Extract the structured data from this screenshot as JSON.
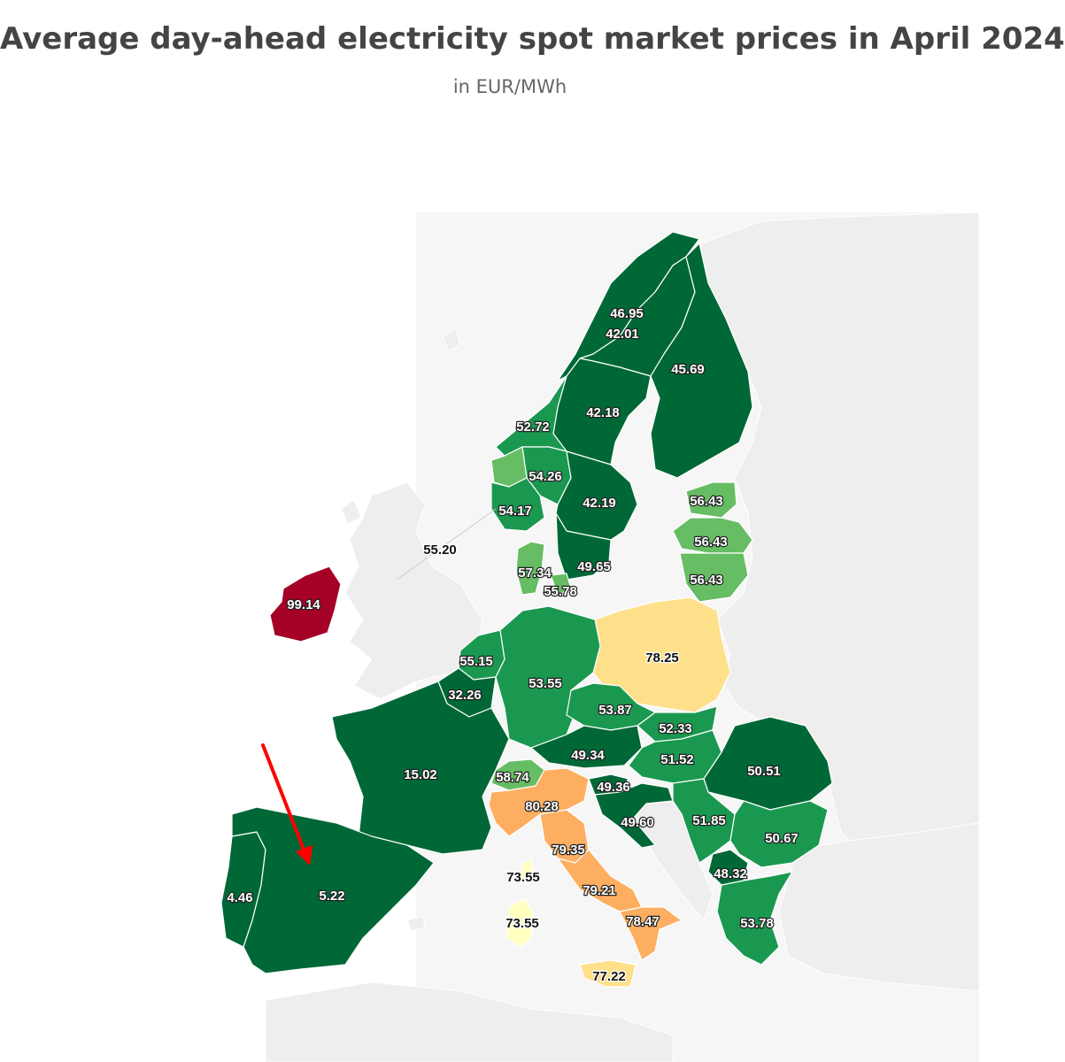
{
  "title": "Average day-ahead electricity spot market prices in April 2024",
  "subtitle": "in EUR/MWh",
  "colors": {
    "very_low": "#006837",
    "low": "#1a9850",
    "mid_low": "#66bd63",
    "mid": "#fee08b",
    "mid_high": "#fdae61",
    "pale": "#ffffbf",
    "high": "#a50026",
    "background_land": "#eeeeee",
    "arrow": "#ff0000"
  },
  "regions": [
    {
      "id": "no4",
      "value": "46.95",
      "color": "very_low"
    },
    {
      "id": "se1",
      "value": "42.01",
      "color": "very_low"
    },
    {
      "id": "fi",
      "value": "45.69",
      "color": "very_low"
    },
    {
      "id": "se2",
      "value": "42.18",
      "color": "very_low"
    },
    {
      "id": "no3",
      "value": "52.72",
      "color": "low"
    },
    {
      "id": "no1",
      "value": "54.26",
      "color": "low"
    },
    {
      "id": "no2",
      "value": "54.17",
      "color": "low"
    },
    {
      "id": "se3",
      "value": "42.19",
      "color": "very_low"
    },
    {
      "id": "se4",
      "value": "49.65",
      "color": "very_low"
    },
    {
      "id": "ee",
      "value": "56.43",
      "color": "mid_low"
    },
    {
      "id": "lv",
      "value": "56.43",
      "color": "mid_low"
    },
    {
      "id": "lt",
      "value": "56.43",
      "color": "mid_low"
    },
    {
      "id": "uk_link",
      "value": "55.20",
      "color": "none"
    },
    {
      "id": "dk1",
      "value": "57.34",
      "color": "mid_low"
    },
    {
      "id": "dk2",
      "value": "55.78",
      "color": "mid_low"
    },
    {
      "id": "ie",
      "value": "99.14",
      "color": "high"
    },
    {
      "id": "pl",
      "value": "78.25",
      "color": "mid"
    },
    {
      "id": "nl",
      "value": "55.15",
      "color": "low"
    },
    {
      "id": "de",
      "value": "53.55",
      "color": "low"
    },
    {
      "id": "be",
      "value": "32.26",
      "color": "very_low"
    },
    {
      "id": "cz",
      "value": "53.87",
      "color": "low"
    },
    {
      "id": "sk",
      "value": "52.33",
      "color": "low"
    },
    {
      "id": "hu",
      "value": "51.52",
      "color": "low"
    },
    {
      "id": "at",
      "value": "49.34",
      "color": "very_low"
    },
    {
      "id": "ro",
      "value": "50.51",
      "color": "very_low"
    },
    {
      "id": "fr",
      "value": "15.02",
      "color": "very_low"
    },
    {
      "id": "ch",
      "value": "58.74",
      "color": "mid_low"
    },
    {
      "id": "it_north",
      "value": "80.28",
      "color": "mid_high"
    },
    {
      "id": "si",
      "value": "49.36",
      "color": "very_low"
    },
    {
      "id": "hr",
      "value": "49.60",
      "color": "very_low"
    },
    {
      "id": "rs",
      "value": "51.85",
      "color": "low"
    },
    {
      "id": "bg",
      "value": "50.67",
      "color": "low"
    },
    {
      "id": "it_cnorth",
      "value": "79.35",
      "color": "mid_high"
    },
    {
      "id": "it_corsica",
      "value": "73.55",
      "color": "pale"
    },
    {
      "id": "it_csouth",
      "value": "79.21",
      "color": "mid_high"
    },
    {
      "id": "mk",
      "value": "48.32",
      "color": "very_low"
    },
    {
      "id": "pt",
      "value": "4.46",
      "color": "very_low"
    },
    {
      "id": "es",
      "value": "5.22",
      "color": "very_low"
    },
    {
      "id": "it_sardinia",
      "value": "73.55",
      "color": "pale"
    },
    {
      "id": "it_south",
      "value": "78.47",
      "color": "mid_high"
    },
    {
      "id": "gr",
      "value": "53.78",
      "color": "low"
    },
    {
      "id": "it_sicily",
      "value": "77.22",
      "color": "mid"
    }
  ]
}
